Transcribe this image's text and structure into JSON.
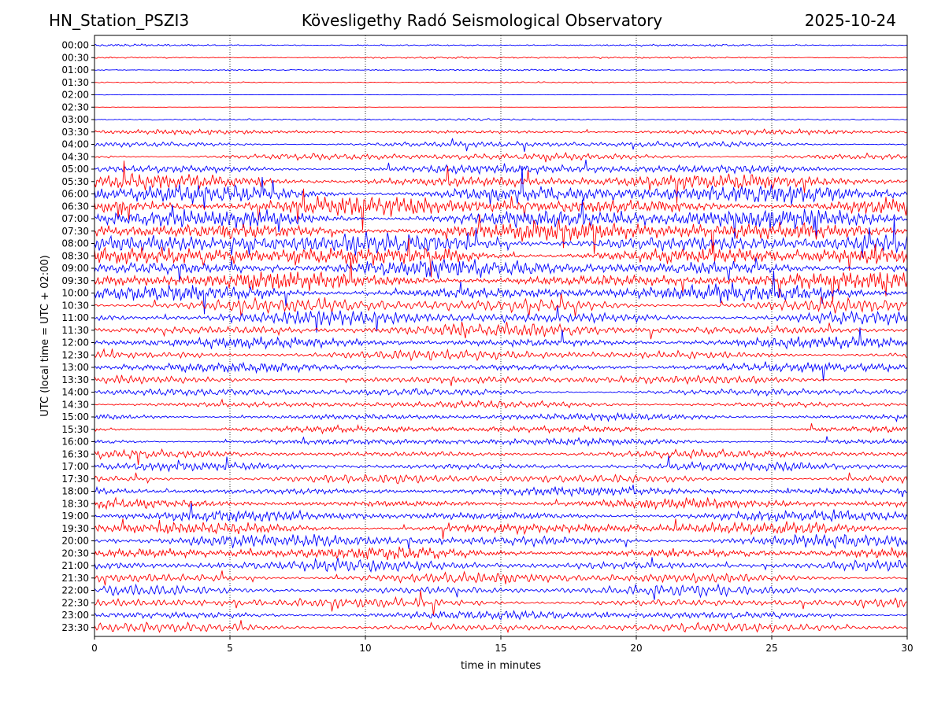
{
  "header": {
    "station": "HN_Station_PSZI3",
    "title": "Kövesligethy Radó Seismological Observatory",
    "date": "2025-10-24"
  },
  "chart_data": {
    "type": "line",
    "title": "Kövesligethy Radó Seismological Observatory",
    "xlabel": "time in minutes",
    "ylabel": "UTC (local time = UTC + 02:00)",
    "xlim": [
      0,
      30
    ],
    "x_ticks": [
      "0",
      "5",
      "10",
      "15",
      "20",
      "25",
      "30"
    ],
    "x_gridlines_at": [
      5,
      10,
      15,
      20,
      25
    ],
    "grid": "vertical dotted",
    "series_colors": [
      "#0000ff",
      "#ff0000"
    ],
    "rows": [
      "00:00",
      "00:30",
      "01:00",
      "01:30",
      "02:00",
      "02:30",
      "03:00",
      "03:30",
      "04:00",
      "04:30",
      "05:00",
      "05:30",
      "06:00",
      "06:30",
      "07:00",
      "07:30",
      "08:00",
      "08:30",
      "09:00",
      "09:30",
      "10:00",
      "10:30",
      "11:00",
      "11:30",
      "12:00",
      "12:30",
      "13:00",
      "13:30",
      "14:00",
      "14:30",
      "15:00",
      "15:30",
      "16:00",
      "16:30",
      "17:00",
      "17:30",
      "18:00",
      "18:30",
      "19:00",
      "19:30",
      "20:00",
      "20:30",
      "21:00",
      "21:30",
      "22:00",
      "22:30",
      "23:00",
      "23:30"
    ],
    "relative_activity": [
      0.3,
      0.3,
      0.25,
      0.25,
      0.08,
      0.05,
      0.3,
      0.8,
      1.0,
      1.2,
      1.6,
      2.4,
      3.0,
      3.2,
      3.3,
      3.3,
      3.3,
      3.2,
      3.0,
      2.8,
      2.6,
      2.4,
      2.2,
      2.0,
      1.8,
      1.6,
      1.5,
      1.4,
      1.3,
      1.2,
      1.2,
      1.2,
      1.2,
      1.3,
      1.4,
      1.5,
      1.5,
      1.6,
      1.8,
      2.0,
      2.1,
      2.0,
      1.9,
      1.8,
      1.7,
      1.6,
      1.5,
      1.5
    ]
  }
}
